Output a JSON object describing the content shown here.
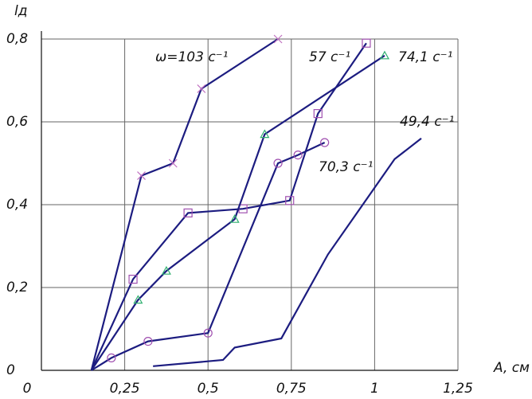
{
  "chart_data": {
    "type": "line",
    "x_label": "A, см",
    "y_label": "lд",
    "xlim": [
      0,
      1.25
    ],
    "ylim": [
      0,
      0.8
    ],
    "xticks": [
      0,
      {
        "value": 0.25,
        "label": "0,25"
      },
      {
        "value": 0.5,
        "label": "0,5"
      },
      {
        "value": 0.75,
        "label": "0,75"
      },
      1,
      {
        "value": 1.25,
        "label": "1,25"
      }
    ],
    "yticks": [
      0,
      {
        "value": 0.2,
        "label": "0,2"
      },
      {
        "value": 0.4,
        "label": "0,4"
      },
      {
        "value": 0.6,
        "label": "0,6"
      },
      {
        "value": 0.8,
        "label": "0,8"
      }
    ],
    "grid": true,
    "series": [
      {
        "name": "ω=103 c⁻¹",
        "color": "#1c1c80",
        "marker": "x",
        "marker_color": "#c070c0",
        "x": [
          0.15,
          0.3,
          0.395,
          0.48,
          0.71
        ],
        "values": [
          0,
          0.47,
          0.5,
          0.68,
          0.8
        ]
      },
      {
        "name": "57 c⁻¹",
        "color": "#1c1c80",
        "marker": "square",
        "marker_color": "#a050b0",
        "x": [
          0.15,
          0.275,
          0.44,
          0.605,
          0.745,
          0.83,
          0.975
        ],
        "values": [
          0,
          0.22,
          0.38,
          0.39,
          0.41,
          0.62,
          0.79
        ]
      },
      {
        "name": "74,1 c⁻¹",
        "color": "#1c1c80",
        "marker": "triangle",
        "marker_color": "#30b070",
        "x": [
          0.15,
          0.29,
          0.375,
          0.58,
          0.67,
          1.03
        ],
        "values": [
          0,
          0.17,
          0.24,
          0.365,
          0.57,
          0.76
        ]
      },
      {
        "name": "70,3 c⁻¹",
        "color": "#1c1c80",
        "marker": "circle",
        "marker_color": "#a050b0",
        "x": [
          0.15,
          0.21,
          0.32,
          0.5,
          0.71,
          0.77,
          0.85
        ],
        "values": [
          0,
          0.03,
          0.07,
          0.09,
          0.5,
          0.52,
          0.55
        ]
      },
      {
        "name": "49,4 c⁻¹",
        "color": "#1c1c80",
        "marker": "none",
        "marker_color": "#a050b0",
        "x": [
          0.335,
          0.545,
          0.58,
          0.72,
          0.86,
          1.06,
          1.14
        ],
        "values": [
          0.01,
          0.025,
          0.055,
          0.077,
          0.28,
          0.51,
          0.56
        ]
      }
    ]
  }
}
